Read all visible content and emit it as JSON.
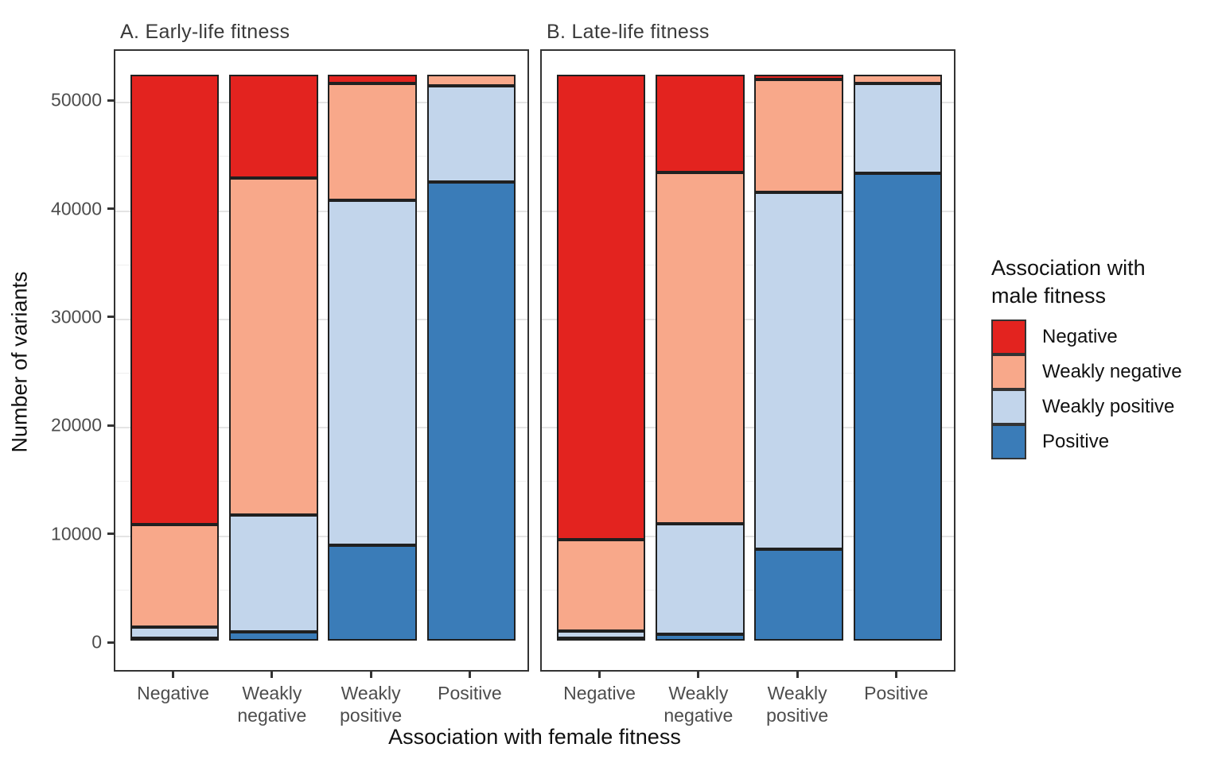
{
  "figure": {
    "y_axis_title": "Number of variants",
    "x_axis_title": "Association with female fitness"
  },
  "legend": {
    "title_lines": [
      "Association with",
      "male fitness"
    ],
    "entries": [
      {
        "label": "Negative",
        "color": "#e3231f"
      },
      {
        "label": "Weakly negative",
        "color": "#f8a88a"
      },
      {
        "label": "Weakly positive",
        "color": "#c2d5eb"
      },
      {
        "label": "Positive",
        "color": "#3a7cb8"
      }
    ]
  },
  "chart_data": [
    {
      "type": "bar",
      "stacked": true,
      "title": "A. Early-life fitness",
      "categories": [
        "Negative",
        "Weakly\nnegative",
        "Weakly\npositive",
        "Positive"
      ],
      "xlabel": "Association with female fitness",
      "ylabel": "Number of variants",
      "ylim": [
        0,
        52200
      ],
      "yticks": [
        0,
        10000,
        20000,
        30000,
        40000,
        50000
      ],
      "grid": true,
      "legend_position": "right",
      "series": [
        {
          "name": "Negative",
          "color": "#e3231f",
          "values": [
            41500,
            9500,
            800,
            0
          ]
        },
        {
          "name": "Weakly negative",
          "color": "#f8a88a",
          "values": [
            9450,
            31100,
            10800,
            1000
          ]
        },
        {
          "name": "Weakly positive",
          "color": "#c2d5eb",
          "values": [
            1000,
            10800,
            31800,
            8900
          ]
        },
        {
          "name": "Positive",
          "color": "#3a7cb8",
          "values": [
            250,
            800,
            8800,
            42300
          ]
        }
      ]
    },
    {
      "type": "bar",
      "stacked": true,
      "title": "B. Late-life fitness",
      "categories": [
        "Negative",
        "Weakly\nnegative",
        "Weakly\npositive",
        "Positive"
      ],
      "xlabel": "Association with female fitness",
      "ylabel": "Number of variants",
      "ylim": [
        0,
        52200
      ],
      "yticks": [
        0,
        10000,
        20000,
        30000,
        40000,
        50000
      ],
      "grid": true,
      "legend_position": "right",
      "series": [
        {
          "name": "Negative",
          "color": "#e3231f",
          "values": [
            42850,
            9000,
            400,
            0
          ]
        },
        {
          "name": "Weakly negative",
          "color": "#f8a88a",
          "values": [
            8450,
            32400,
            10400,
            800
          ]
        },
        {
          "name": "Weakly positive",
          "color": "#c2d5eb",
          "values": [
            700,
            10200,
            33000,
            8300
          ]
        },
        {
          "name": "Positive",
          "color": "#3a7cb8",
          "values": [
            200,
            600,
            8400,
            43100
          ]
        }
      ]
    }
  ]
}
